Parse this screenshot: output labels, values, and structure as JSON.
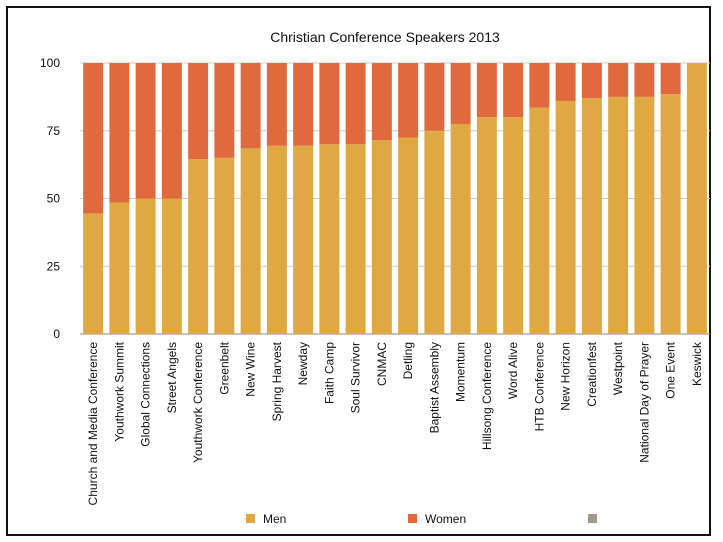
{
  "chart_data": {
    "type": "bar",
    "stacked": true,
    "title": "Christian Conference Speakers 2013",
    "xlabel": "",
    "ylabel": "",
    "ylim": [
      0,
      100
    ],
    "yticks": [
      0,
      25,
      50,
      75,
      100
    ],
    "grid": true,
    "legend_position": "bottom",
    "categories": [
      "Church and Media Conference",
      "Youthwork Summit",
      "Global Connections",
      "Street Angels",
      "Youthwork Conference",
      "Greenbelt",
      "New Wine",
      "Spring Harvest",
      "Newday",
      "Faith Camp",
      "Soul Survivor",
      "CNMAC",
      "Detling",
      "Baptist Assembly",
      "Momentum",
      "Hillsong Conference",
      "Word Alive",
      "HTB Conference",
      "New Horizon",
      "Creationfest",
      "Westpoint",
      "National Day of Prayer",
      "One Event",
      "Keswick"
    ],
    "series": [
      {
        "name": "Men",
        "color": "#E0A843",
        "values": [
          44.5,
          48.5,
          50,
          50,
          64.5,
          65,
          68.5,
          69.5,
          69.5,
          70,
          70,
          71.5,
          72.5,
          75,
          77.5,
          80,
          80,
          83.5,
          86,
          87,
          87.5,
          87.5,
          88.5,
          100
        ]
      },
      {
        "name": "Women",
        "color": "#E0693E",
        "values": [
          55.5,
          51.5,
          50,
          50,
          35.5,
          35,
          31.5,
          30.5,
          30.5,
          30,
          30,
          28.5,
          27.5,
          25,
          22.5,
          20,
          20,
          16.5,
          14,
          13,
          12.5,
          12.5,
          11.5,
          0
        ]
      }
    ],
    "legend": [
      {
        "name": "Men",
        "color": "#E0A843"
      },
      {
        "name": "Women",
        "color": "#E0693E"
      },
      {
        "name": "",
        "color": "#A09A8C"
      }
    ]
  }
}
